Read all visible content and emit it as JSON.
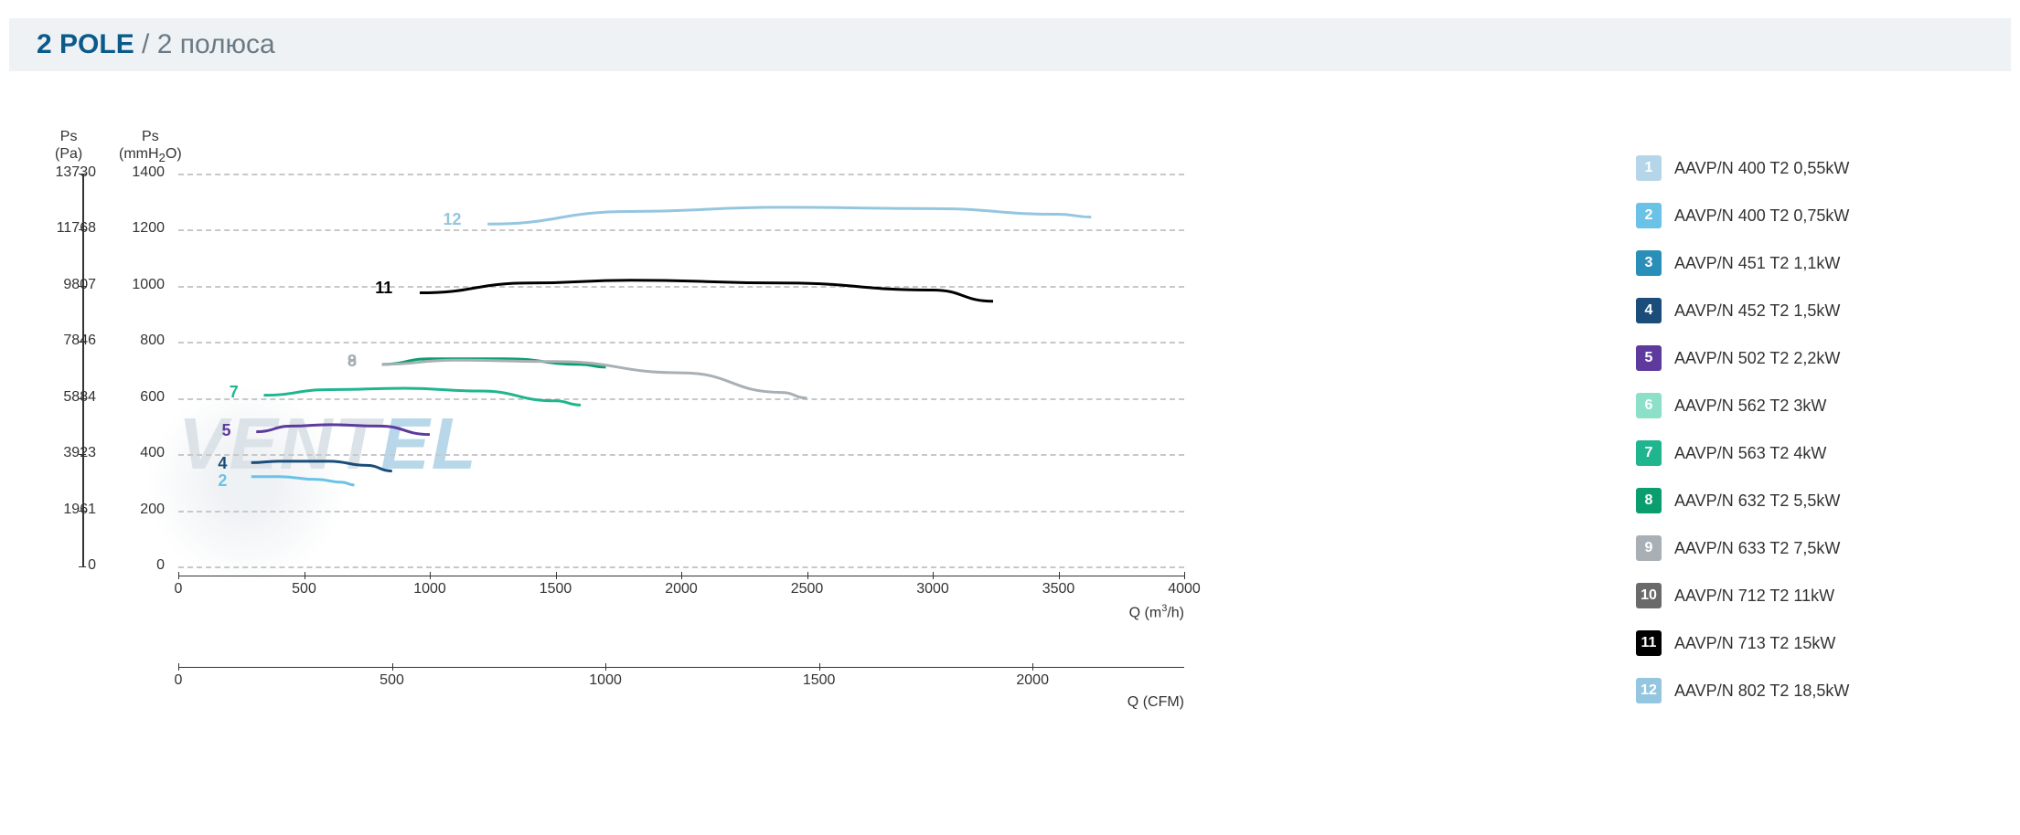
{
  "header": {
    "title_en": "2 POLE",
    "title_ru": " / 2 полюса"
  },
  "chart": {
    "type": "line",
    "background_color": "#ffffff",
    "grid_color": "#c8c8c8",
    "yaxis_left": {
      "label_line1": "Ps",
      "label_line2": "(Pa)",
      "ticks": [
        {
          "val": 0,
          "label": "0"
        },
        {
          "val": 200,
          "label": "1961"
        },
        {
          "val": 400,
          "label": "3923"
        },
        {
          "val": 600,
          "label": "5884"
        },
        {
          "val": 800,
          "label": "7846"
        },
        {
          "val": 1000,
          "label": "9807"
        },
        {
          "val": 1200,
          "label": "11768"
        },
        {
          "val": 1400,
          "label": "13730"
        }
      ]
    },
    "yaxis_right": {
      "label_line1": "Ps",
      "label_line2_html": "(mmH<sub>2</sub>O)",
      "ticks": [
        {
          "val": 0,
          "label": "0"
        },
        {
          "val": 200,
          "label": "200"
        },
        {
          "val": 400,
          "label": "400"
        },
        {
          "val": 600,
          "label": "600"
        },
        {
          "val": 800,
          "label": "800"
        },
        {
          "val": 1000,
          "label": "1000"
        },
        {
          "val": 1200,
          "label": "1200"
        },
        {
          "val": 1400,
          "label": "1400"
        }
      ]
    },
    "ylim": [
      0,
      1400
    ],
    "xaxis_1": {
      "label_html": "Q (m<sup>3</sup>/h)",
      "xlim": [
        0,
        4000
      ],
      "ticks": [
        0,
        500,
        1000,
        1500,
        2000,
        2500,
        3000,
        3500,
        4000
      ]
    },
    "xaxis_2": {
      "label": "Q (CFM)",
      "xlim": [
        0,
        2355
      ],
      "ticks": [
        0,
        500,
        1000,
        1500,
        2000
      ]
    },
    "curves": [
      {
        "id": "2",
        "color": "#6ac3e6",
        "label_color": "#6ac3e6",
        "label_xy": [
          245,
          300
        ],
        "points": [
          [
            290,
            320
          ],
          [
            400,
            320
          ],
          [
            550,
            310
          ],
          [
            650,
            300
          ],
          [
            700,
            290
          ]
        ]
      },
      {
        "id": "4",
        "color": "#1a4d7a",
        "label_color": "#1a4d7a",
        "label_xy": [
          245,
          360
        ],
        "points": [
          [
            290,
            370
          ],
          [
            400,
            375
          ],
          [
            600,
            375
          ],
          [
            750,
            360
          ],
          [
            850,
            340
          ]
        ]
      },
      {
        "id": "5",
        "color": "#5e3a9e",
        "label_color": "#5e3a9e",
        "label_xy": [
          260,
          480
        ],
        "points": [
          [
            310,
            480
          ],
          [
            450,
            500
          ],
          [
            600,
            505
          ],
          [
            800,
            500
          ],
          [
            1000,
            470
          ]
        ]
      },
      {
        "id": "7",
        "color": "#1fb58f",
        "label_color": "#1fb58f",
        "label_xy": [
          290,
          615
        ],
        "points": [
          [
            340,
            610
          ],
          [
            600,
            630
          ],
          [
            900,
            635
          ],
          [
            1200,
            625
          ],
          [
            1500,
            590
          ],
          [
            1600,
            575
          ]
        ]
      },
      {
        "id": "8",
        "color": "#0a9e6f",
        "label_color": "#9aa5ab",
        "label_xy": [
          760,
          725
        ],
        "points": [
          [
            810,
            720
          ],
          [
            1000,
            740
          ],
          [
            1300,
            740
          ],
          [
            1600,
            720
          ],
          [
            1700,
            710
          ]
        ]
      },
      {
        "id": "9",
        "color": "#a8b0b5",
        "label_color": "#a8b0b5",
        "label_xy": [
          760,
          725
        ],
        "points": [
          [
            810,
            720
          ],
          [
            1100,
            735
          ],
          [
            1500,
            730
          ],
          [
            2000,
            690
          ],
          [
            2400,
            620
          ],
          [
            2500,
            600
          ]
        ]
      },
      {
        "id": "11",
        "color": "#000000",
        "label_color": "#000000",
        "label_xy": [
          870,
          985
        ],
        "points": [
          [
            960,
            975
          ],
          [
            1400,
            1010
          ],
          [
            1800,
            1020
          ],
          [
            2400,
            1010
          ],
          [
            3000,
            985
          ],
          [
            3240,
            945
          ]
        ]
      },
      {
        "id": "12",
        "color": "#95c6e0",
        "label_color": "#95c6e0",
        "label_xy": [
          1140,
          1230
        ],
        "points": [
          [
            1230,
            1220
          ],
          [
            1800,
            1265
          ],
          [
            2400,
            1280
          ],
          [
            3000,
            1275
          ],
          [
            3500,
            1255
          ],
          [
            3630,
            1245
          ]
        ]
      }
    ],
    "watermark_text_main": "VENT",
    "watermark_text_el": "EL"
  },
  "legend": {
    "items": [
      {
        "num": "1",
        "label": "AAVP/N 400 T2 0,55kW",
        "color": "#b5d6e8"
      },
      {
        "num": "2",
        "label": "AAVP/N 400 T2 0,75kW",
        "color": "#6ac3e6"
      },
      {
        "num": "3",
        "label": "AAVP/N 451 T2 1,1kW",
        "color": "#2a8fb8"
      },
      {
        "num": "4",
        "label": "AAVP/N 452 T2 1,5kW",
        "color": "#1a4d7a"
      },
      {
        "num": "5",
        "label": "AAVP/N 502 T2 2,2kW",
        "color": "#5e3a9e"
      },
      {
        "num": "6",
        "label": "AAVP/N 562 T2 3kW",
        "color": "#8de0c8"
      },
      {
        "num": "7",
        "label": "AAVP/N 563 T2 4kW",
        "color": "#1fb58f"
      },
      {
        "num": "8",
        "label": "AAVP/N 632 T2 5,5kW",
        "color": "#0a9e6f"
      },
      {
        "num": "9",
        "label": "AAVP/N 633 T2 7,5kW",
        "color": "#a8b0b5"
      },
      {
        "num": "10",
        "label": "AAVP/N 712 T2 11kW",
        "color": "#6a6a6a"
      },
      {
        "num": "11",
        "label": "AAVP/N 713 T2 15kW",
        "color": "#000000"
      },
      {
        "num": "12",
        "label": "AAVP/N 802 T2 18,5kW",
        "color": "#95c6e0"
      }
    ]
  },
  "label_fontsize": 16,
  "legend_fontsize": 18,
  "title_fontsize": 30
}
